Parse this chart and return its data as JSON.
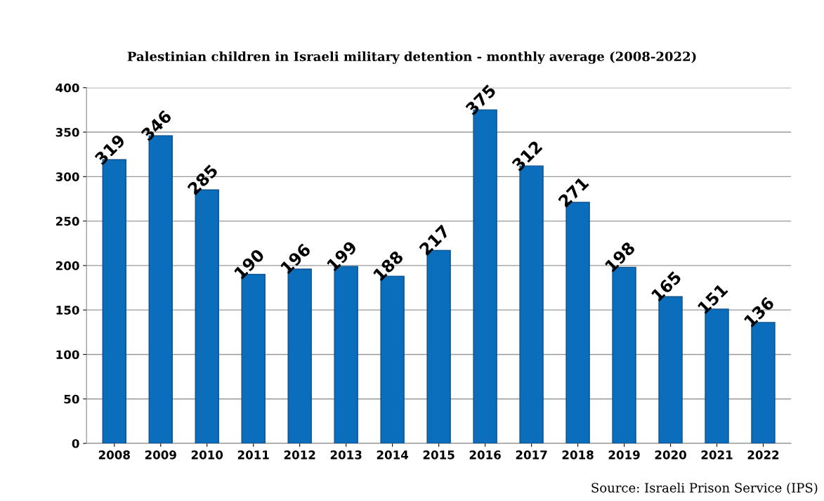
{
  "chart_data": {
    "type": "bar",
    "title": "Palestinian children in Israeli military detention - monthly average (2008-2022)",
    "categories": [
      "2008",
      "2009",
      "2010",
      "2011",
      "2012",
      "2013",
      "2014",
      "2015",
      "2016",
      "2017",
      "2018",
      "2019",
      "2020",
      "2021",
      "2022"
    ],
    "values": [
      319,
      346,
      285,
      190,
      196,
      199,
      188,
      217,
      375,
      312,
      271,
      198,
      165,
      151,
      136
    ],
    "color": "#0a6ebd",
    "ylim": [
      0,
      400
    ],
    "yticks": [
      0,
      50,
      100,
      150,
      200,
      250,
      300,
      350,
      400
    ],
    "grid": "y",
    "data_labels": true,
    "annotations": [
      "Source: Israeli Prison Service (IPS)"
    ]
  }
}
